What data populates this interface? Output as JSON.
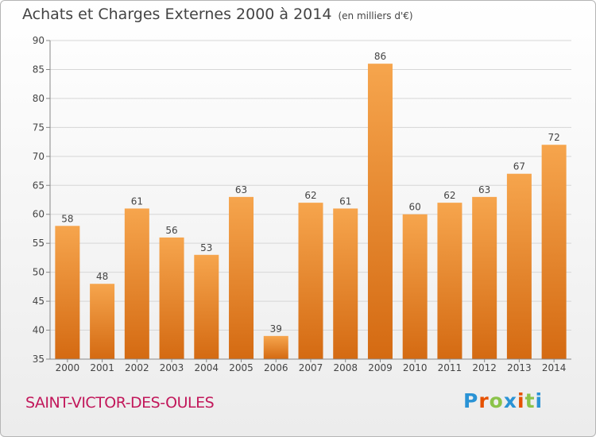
{
  "header": {
    "title": "Achats et Charges Externes 2000 à 2014",
    "unit": "(en milliers d'€)"
  },
  "footer": {
    "commune": "SAINT-VICTOR-DES-OULES",
    "logo_letters": [
      "P",
      "r",
      "o",
      "x",
      "i",
      "t",
      "i"
    ],
    "logo_colors": [
      "#2a93d5",
      "#e65100",
      "#8bc34a",
      "#2a93d5",
      "#e65100",
      "#8bc34a",
      "#2a93d5"
    ]
  },
  "chart_data": {
    "type": "bar",
    "title": "Achats et Charges Externes 2000 à 2014",
    "subtitle": "(en milliers d'€)",
    "categories": [
      "2000",
      "2001",
      "2002",
      "2003",
      "2004",
      "2005",
      "2006",
      "2007",
      "2008",
      "2009",
      "2010",
      "2011",
      "2012",
      "2013",
      "2014"
    ],
    "values": [
      58,
      48,
      61,
      56,
      53,
      63,
      39,
      62,
      61,
      86,
      60,
      62,
      63,
      67,
      72
    ],
    "ylim": [
      35,
      90
    ],
    "yticks": [
      35,
      40,
      45,
      50,
      55,
      60,
      65,
      70,
      75,
      80,
      85,
      90
    ],
    "grid": true,
    "bar_color": "#f0953a",
    "xlabel": "",
    "ylabel": ""
  }
}
